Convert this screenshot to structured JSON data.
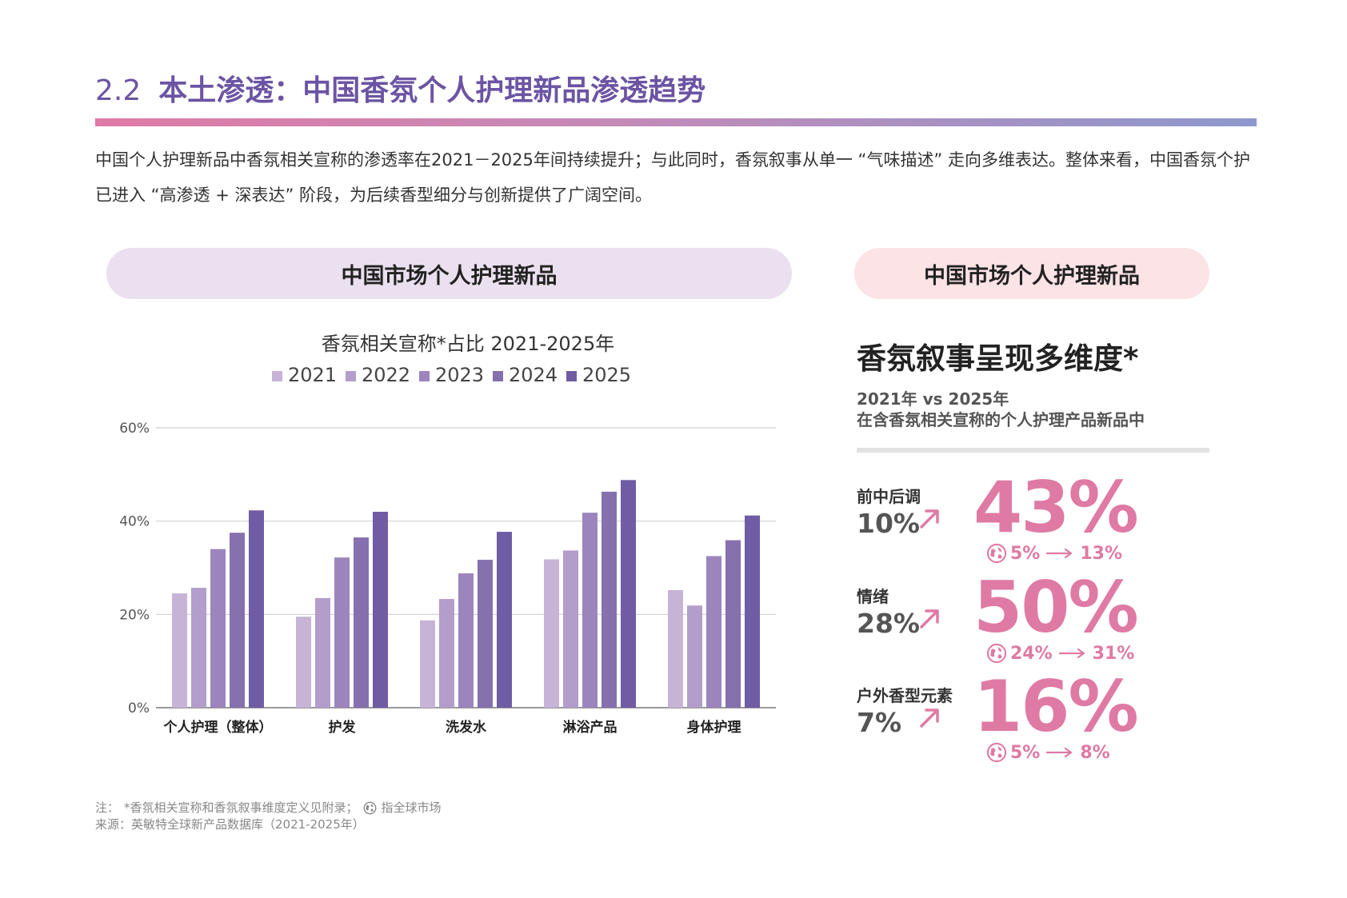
{
  "header": {
    "section_number": "2.2",
    "title": "本土渗透：中国香氛个人护理新品渗透趋势"
  },
  "intro": "中国个人护理新品中香氛相关宣称的渗透率在2021－2025年间持续提升；与此同时，香氛叙事从单一 “气味描述” 走向多维表达。整体来看，中国香氛个护已进入 “高渗透 + 深表达” 阶段，为后续香型细分与创新提供了广阔空间。",
  "left_panel": {
    "pill_label": "中国市场个人护理新品"
  },
  "right_panel": {
    "pill_label": "中国市场个人护理新品",
    "heading": "香氛叙事呈现多维度*",
    "sub_line1": "2021年 vs 2025年",
    "sub_line2": "在含香氛相关宣称的个人护理产品新品中",
    "metrics": [
      {
        "label": "前中后调",
        "old_value": "10%",
        "new_value": "43%",
        "global_from": "5%",
        "global_to": "13%"
      },
      {
        "label": "情绪",
        "old_value": "28%",
        "new_value": "50%",
        "global_from": "24%",
        "global_to": "31%"
      },
      {
        "label": "户外香型元素",
        "old_value": "7%",
        "new_value": "16%",
        "global_from": "5%",
        "global_to": "8%"
      }
    ]
  },
  "footnote": {
    "note_prefix": "注：",
    "note_text": "*香氛相关宣称和香氛叙事维度定义见附录；",
    "note_global": "指全球市场",
    "source": "来源：英敏特全球新产品数据库（2021-2025年）"
  },
  "colors": {
    "title": "#6b54a3",
    "accent_pink": "#df7aa4",
    "series": [
      "#c6b3d6",
      "#b39dcb",
      "#9c85bd",
      "#8670ae",
      "#6f5ca4"
    ]
  },
  "chart_data": {
    "type": "bar",
    "title": "香氛相关宣称*占比  2021-2025年",
    "xlabel": "",
    "ylabel": "",
    "ylim": [
      0,
      60
    ],
    "y_ticks": [
      "0%",
      "20%",
      "40%",
      "60%"
    ],
    "categories": [
      "个人护理（整体）",
      "护发",
      "洗发水",
      "淋浴产品",
      "身体护理"
    ],
    "series": [
      {
        "name": "2021",
        "values": [
          24.5,
          19.5,
          18.7,
          31.8,
          25.2
        ]
      },
      {
        "name": "2022",
        "values": [
          25.7,
          23.5,
          23.3,
          33.7,
          21.9
        ]
      },
      {
        "name": "2023",
        "values": [
          34.0,
          32.2,
          28.8,
          41.8,
          32.5
        ]
      },
      {
        "name": "2024",
        "values": [
          37.5,
          36.5,
          31.7,
          46.3,
          35.9
        ]
      },
      {
        "name": "2025",
        "values": [
          42.3,
          42.0,
          37.7,
          48.8,
          41.2
        ]
      }
    ],
    "legend_position": "top-center",
    "grid": true
  }
}
